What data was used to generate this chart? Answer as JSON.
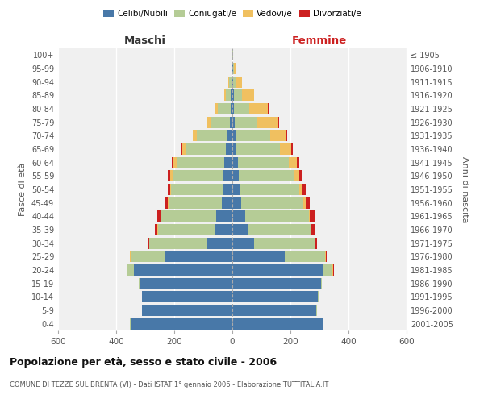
{
  "age_groups": [
    "0-4",
    "5-9",
    "10-14",
    "15-19",
    "20-24",
    "25-29",
    "30-34",
    "35-39",
    "40-44",
    "45-49",
    "50-54",
    "55-59",
    "60-64",
    "65-69",
    "70-74",
    "75-79",
    "80-84",
    "85-89",
    "90-94",
    "95-99",
    "100+"
  ],
  "birth_years": [
    "2001-2005",
    "1996-2000",
    "1991-1995",
    "1986-1990",
    "1981-1985",
    "1976-1980",
    "1971-1975",
    "1966-1970",
    "1961-1965",
    "1956-1960",
    "1951-1955",
    "1946-1950",
    "1941-1945",
    "1936-1940",
    "1931-1935",
    "1926-1930",
    "1921-1925",
    "1916-1920",
    "1911-1915",
    "1906-1910",
    "≤ 1905"
  ],
  "males": {
    "celibe": [
      350,
      310,
      310,
      320,
      340,
      230,
      90,
      60,
      55,
      35,
      32,
      30,
      28,
      22,
      18,
      8,
      5,
      5,
      3,
      2,
      0
    ],
    "coniugato": [
      2,
      2,
      2,
      2,
      20,
      120,
      195,
      195,
      190,
      185,
      178,
      175,
      165,
      140,
      105,
      68,
      45,
      18,
      8,
      2,
      0
    ],
    "vedovo": [
      0,
      0,
      0,
      0,
      2,
      2,
      2,
      2,
      2,
      3,
      5,
      8,
      10,
      10,
      12,
      12,
      10,
      5,
      2,
      0,
      0
    ],
    "divorziato": [
      0,
      0,
      0,
      0,
      2,
      2,
      5,
      10,
      12,
      10,
      8,
      8,
      5,
      3,
      2,
      2,
      2,
      0,
      0,
      0,
      0
    ]
  },
  "females": {
    "nubile": [
      310,
      290,
      295,
      305,
      310,
      180,
      75,
      55,
      45,
      30,
      25,
      22,
      20,
      15,
      10,
      8,
      5,
      5,
      3,
      2,
      0
    ],
    "coniugata": [
      2,
      2,
      2,
      2,
      35,
      140,
      210,
      215,
      218,
      215,
      205,
      190,
      175,
      148,
      120,
      78,
      52,
      28,
      12,
      4,
      2
    ],
    "vedova": [
      0,
      0,
      0,
      0,
      2,
      2,
      2,
      2,
      5,
      8,
      12,
      18,
      28,
      40,
      55,
      72,
      65,
      42,
      18,
      5,
      2
    ],
    "divorziata": [
      0,
      0,
      0,
      0,
      2,
      2,
      5,
      12,
      15,
      15,
      12,
      10,
      8,
      5,
      3,
      2,
      2,
      0,
      0,
      0,
      0
    ]
  },
  "colors": {
    "celibe": "#4878a8",
    "coniugato": "#b5cc96",
    "vedovo": "#f0c060",
    "divorziato": "#cc2020"
  },
  "xlim": 600,
  "title": "Popolazione per età, sesso e stato civile - 2006",
  "subtitle": "COMUNE DI TEZZE SUL BRENTA (VI) - Dati ISTAT 1° gennaio 2006 - Elaborazione TUTTITALIA.IT",
  "ylabel_left": "Fasce di età",
  "ylabel_right": "Anni di nascita",
  "xlabel_maschi": "Maschi",
  "xlabel_femmine": "Femmine",
  "legend_labels": [
    "Celibi/Nubili",
    "Coniugati/e",
    "Vedovi/e",
    "Divorziati/e"
  ],
  "bg_color": "#f0f0f0",
  "bar_height": 0.85
}
